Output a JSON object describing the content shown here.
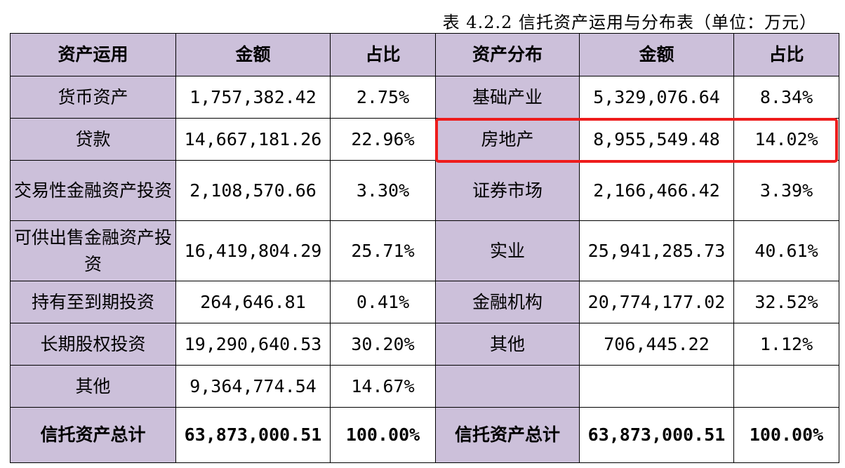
{
  "caption": "表 4.2.2 信托资产运用与分布表（单位：万元）",
  "headers": [
    "资产运用",
    "金额",
    "占比",
    "资产分布",
    "金额",
    "占比"
  ],
  "rows": [
    [
      "货币资产",
      "1,757,382.42",
      "2.75%",
      "基础产业",
      "5,329,076.64",
      "8.34%"
    ],
    [
      "贷款",
      "14,667,181.26",
      "22.96%",
      "房地产",
      "8,955,549.48",
      "14.02%"
    ],
    [
      "交易性金融资产投资",
      "2,108,570.66",
      "3.30%",
      "证券市场",
      "2,166,466.42",
      "3.39%"
    ],
    [
      "可供出售金融资产投资",
      "16,419,804.29",
      "25.71%",
      "实业",
      "25,941,285.73",
      "40.61%"
    ],
    [
      "持有至到期投资",
      "264,646.81",
      "0.41%",
      "金融机构",
      "20,774,177.02",
      "32.52%"
    ],
    [
      "长期股权投资",
      "19,290,640.53",
      "30.20%",
      "其他",
      "706,445.22",
      "1.12%"
    ],
    [
      "其他",
      "9,364,774.54",
      "14.67%",
      "",
      "",
      ""
    ]
  ],
  "total": [
    "信托资产总计",
    "63,873,000.51",
    "100.00%",
    "信托资产总计",
    "63,873,000.51",
    "100.00%"
  ],
  "colors": {
    "header_bg": "#ccc0da",
    "highlight": "#ee1c1c"
  }
}
